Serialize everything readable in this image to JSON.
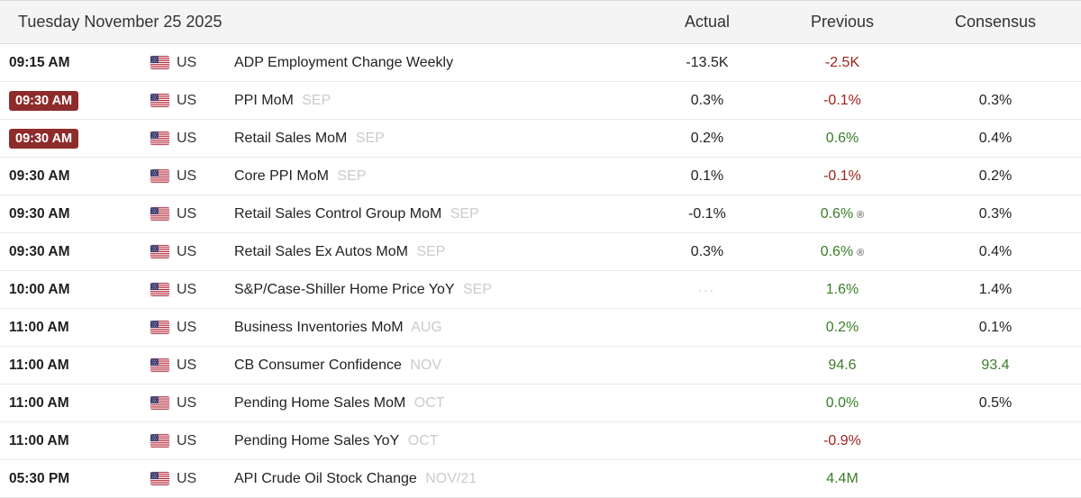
{
  "header": {
    "date": "Tuesday November 25 2025",
    "columns": [
      "Actual",
      "Previous",
      "Consensus"
    ]
  },
  "colors": {
    "positive": "#3a7d27",
    "negative": "#9c231c",
    "badge_bg": "#8e2b2b",
    "header_bg": "#f4f4f4",
    "period_text": "#c9cbcd"
  },
  "icons": {
    "flag": "us-flag-icon",
    "pending": "pending-indicator",
    "revised_mark": "®"
  },
  "rows": [
    {
      "time": "09:15 AM",
      "time_highlight": false,
      "country": "US",
      "event": "ADP Employment Change Weekly",
      "period": "",
      "actual": "-13.5K",
      "actual_pending": false,
      "previous": "-2.5K",
      "previous_color": "negative",
      "previous_revised": false,
      "consensus": "",
      "consensus_color": "neutral"
    },
    {
      "time": "09:30 AM",
      "time_highlight": true,
      "country": "US",
      "event": "PPI MoM",
      "period": "SEP",
      "actual": "0.3%",
      "actual_pending": false,
      "previous": "-0.1%",
      "previous_color": "negative",
      "previous_revised": false,
      "consensus": "0.3%",
      "consensus_color": "neutral"
    },
    {
      "time": "09:30 AM",
      "time_highlight": true,
      "country": "US",
      "event": "Retail Sales MoM",
      "period": "SEP",
      "actual": "0.2%",
      "actual_pending": false,
      "previous": "0.6%",
      "previous_color": "positive",
      "previous_revised": false,
      "consensus": "0.4%",
      "consensus_color": "neutral"
    },
    {
      "time": "09:30 AM",
      "time_highlight": false,
      "country": "US",
      "event": "Core PPI MoM",
      "period": "SEP",
      "actual": "0.1%",
      "actual_pending": false,
      "previous": "-0.1%",
      "previous_color": "negative",
      "previous_revised": false,
      "consensus": "0.2%",
      "consensus_color": "neutral"
    },
    {
      "time": "09:30 AM",
      "time_highlight": false,
      "country": "US",
      "event": "Retail Sales Control Group MoM",
      "period": "SEP",
      "actual": "-0.1%",
      "actual_pending": false,
      "previous": "0.6%",
      "previous_color": "positive",
      "previous_revised": true,
      "consensus": "0.3%",
      "consensus_color": "neutral"
    },
    {
      "time": "09:30 AM",
      "time_highlight": false,
      "country": "US",
      "event": "Retail Sales Ex Autos MoM",
      "period": "SEP",
      "actual": "0.3%",
      "actual_pending": false,
      "previous": "0.6%",
      "previous_color": "positive",
      "previous_revised": true,
      "consensus": "0.4%",
      "consensus_color": "neutral"
    },
    {
      "time": "10:00 AM",
      "time_highlight": false,
      "country": "US",
      "event": "S&P/Case-Shiller Home Price YoY",
      "period": "SEP",
      "actual": "",
      "actual_pending": true,
      "previous": "1.6%",
      "previous_color": "positive",
      "previous_revised": false,
      "consensus": "1.4%",
      "consensus_color": "neutral"
    },
    {
      "time": "11:00 AM",
      "time_highlight": false,
      "country": "US",
      "event": "Business Inventories MoM",
      "period": "AUG",
      "actual": "",
      "actual_pending": false,
      "previous": "0.2%",
      "previous_color": "positive",
      "previous_revised": false,
      "consensus": "0.1%",
      "consensus_color": "neutral"
    },
    {
      "time": "11:00 AM",
      "time_highlight": false,
      "country": "US",
      "event": "CB Consumer Confidence",
      "period": "NOV",
      "actual": "",
      "actual_pending": false,
      "previous": "94.6",
      "previous_color": "positive",
      "previous_revised": false,
      "consensus": "93.4",
      "consensus_color": "positive"
    },
    {
      "time": "11:00 AM",
      "time_highlight": false,
      "country": "US",
      "event": "Pending Home Sales MoM",
      "period": "OCT",
      "actual": "",
      "actual_pending": false,
      "previous": "0.0%",
      "previous_color": "positive",
      "previous_revised": false,
      "consensus": "0.5%",
      "consensus_color": "neutral"
    },
    {
      "time": "11:00 AM",
      "time_highlight": false,
      "country": "US",
      "event": "Pending Home Sales YoY",
      "period": "OCT",
      "actual": "",
      "actual_pending": false,
      "previous": "-0.9%",
      "previous_color": "negative",
      "previous_revised": false,
      "consensus": "",
      "consensus_color": "neutral"
    },
    {
      "time": "05:30 PM",
      "time_highlight": false,
      "country": "US",
      "event": "API Crude Oil Stock Change",
      "period": "NOV/21",
      "actual": "",
      "actual_pending": false,
      "previous": "4.4M",
      "previous_color": "positive",
      "previous_revised": false,
      "consensus": "",
      "consensus_color": "neutral"
    }
  ]
}
